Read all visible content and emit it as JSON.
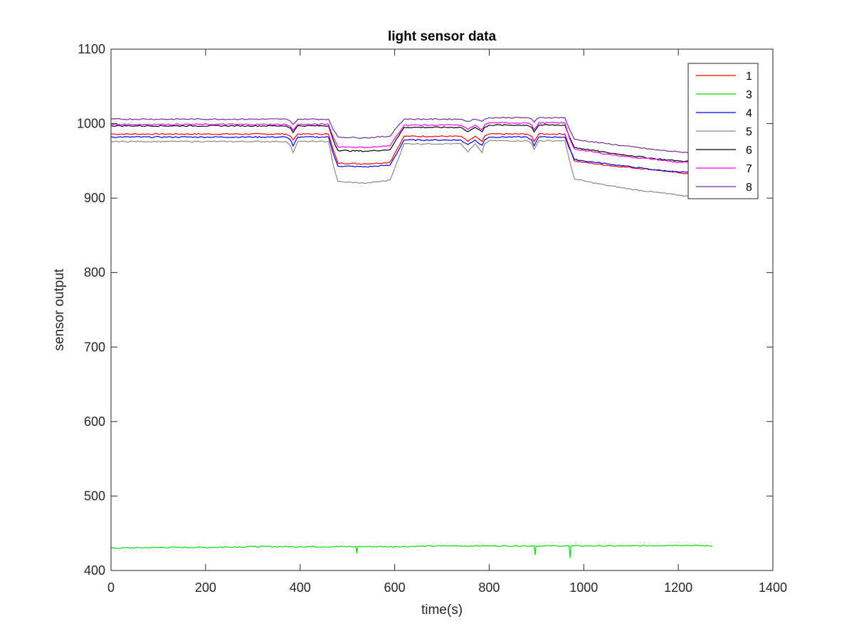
{
  "chart_data": {
    "type": "line",
    "title": "light sensor data",
    "xlabel": "time(s)",
    "ylabel": "sensor output",
    "xlim": [
      0,
      1400
    ],
    "ylim": [
      400,
      1100
    ],
    "xticks": [
      "0",
      "200",
      "400",
      "600",
      "800",
      "1000",
      "1200",
      "1400"
    ],
    "yticks": [
      "400",
      "500",
      "600",
      "700",
      "800",
      "900",
      "1000",
      "1100"
    ],
    "grid": false,
    "legend_position": "top-right",
    "series": [
      {
        "name": "1",
        "color": "#ff0000",
        "x": [
          0,
          370,
          380,
          385,
          395,
          460,
          470,
          480,
          540,
          590,
          600,
          620,
          740,
          745,
          755,
          770,
          775,
          785,
          790,
          800,
          880,
          890,
          895,
          905,
          960,
          970,
          980,
          1000,
          1050,
          1100,
          1150,
          1200,
          1230
        ],
        "y": [
          986,
          986,
          983,
          978,
          986,
          986,
          965,
          947,
          946,
          948,
          960,
          983,
          983,
          981,
          976,
          983,
          981,
          976,
          983,
          986,
          986,
          983,
          976,
          986,
          986,
          968,
          950,
          948,
          944,
          941,
          938,
          934,
          933
        ]
      },
      {
        "name": "3",
        "color": "#00dd00",
        "x": [
          0,
          100,
          200,
          300,
          400,
          500,
          518,
          520,
          522,
          524,
          600,
          700,
          800,
          893,
          895,
          897,
          899,
          967,
          969,
          971,
          973,
          1100,
          1200,
          1272
        ],
        "y": [
          430,
          431,
          431,
          432,
          432,
          432,
          432,
          423,
          432,
          432,
          432,
          433,
          433,
          433,
          433,
          421,
          433,
          433,
          433,
          417,
          433,
          433,
          434,
          433
        ]
      },
      {
        "name": "4",
        "color": "#0000ff",
        "x": [
          0,
          370,
          380,
          385,
          395,
          460,
          470,
          480,
          540,
          590,
          600,
          620,
          740,
          745,
          755,
          770,
          775,
          785,
          790,
          800,
          880,
          890,
          895,
          905,
          960,
          970,
          980,
          1000,
          1050,
          1100,
          1150,
          1200,
          1230
        ],
        "y": [
          982,
          982,
          978,
          970,
          982,
          982,
          960,
          943,
          942,
          944,
          955,
          978,
          978,
          975,
          972,
          978,
          975,
          971,
          978,
          982,
          982,
          978,
          970,
          982,
          982,
          966,
          952,
          950,
          946,
          942,
          938,
          935,
          934
        ]
      },
      {
        "name": "5",
        "color": "#888888",
        "x": [
          0,
          370,
          380,
          385,
          395,
          460,
          470,
          480,
          540,
          590,
          600,
          620,
          740,
          745,
          755,
          770,
          775,
          785,
          790,
          800,
          880,
          890,
          895,
          905,
          960,
          970,
          980,
          1000,
          1050,
          1100,
          1150,
          1200,
          1230
        ],
        "y": [
          976,
          976,
          970,
          961,
          976,
          976,
          945,
          922,
          920,
          924,
          940,
          973,
          973,
          969,
          962,
          973,
          969,
          961,
          973,
          977,
          977,
          973,
          965,
          977,
          977,
          950,
          926,
          923,
          917,
          912,
          908,
          904,
          902
        ]
      },
      {
        "name": "6",
        "color": "#000000",
        "x": [
          0,
          370,
          380,
          385,
          395,
          460,
          470,
          480,
          540,
          590,
          600,
          620,
          740,
          745,
          755,
          770,
          775,
          785,
          790,
          800,
          880,
          890,
          895,
          905,
          960,
          970,
          980,
          1000,
          1050,
          1100,
          1150,
          1200,
          1230
        ],
        "y": [
          997,
          997,
          994,
          988,
          997,
          997,
          978,
          964,
          963,
          965,
          975,
          995,
          995,
          993,
          989,
          995,
          993,
          989,
          995,
          998,
          998,
          995,
          989,
          998,
          998,
          982,
          968,
          966,
          961,
          957,
          953,
          950,
          949
        ]
      },
      {
        "name": "7",
        "color": "#ff00ff",
        "x": [
          0,
          370,
          380,
          385,
          395,
          460,
          470,
          480,
          540,
          590,
          600,
          620,
          740,
          745,
          755,
          770,
          775,
          785,
          790,
          800,
          880,
          890,
          895,
          905,
          960,
          970,
          980,
          1000,
          1050,
          1100,
          1150,
          1200,
          1230
        ],
        "y": [
          999,
          999,
          996,
          991,
          999,
          999,
          982,
          969,
          968,
          970,
          980,
          998,
          998,
          996,
          992,
          998,
          996,
          992,
          998,
          1001,
          1001,
          998,
          992,
          1001,
          1001,
          980,
          966,
          964,
          959,
          955,
          952,
          948,
          948
        ]
      },
      {
        "name": "8",
        "color": "#7030a0",
        "x": [
          0,
          370,
          380,
          385,
          395,
          460,
          470,
          480,
          540,
          590,
          600,
          620,
          740,
          745,
          755,
          770,
          775,
          785,
          790,
          800,
          880,
          890,
          895,
          905,
          960,
          970,
          980,
          1000,
          1050,
          1100,
          1150,
          1200,
          1230
        ],
        "y": [
          1006,
          1006,
          1003,
          999,
          1006,
          1006,
          992,
          982,
          981,
          983,
          992,
          1006,
          1006,
          1005,
          1003,
          1006,
          1005,
          1003,
          1006,
          1008,
          1008,
          1006,
          1002,
          1008,
          1008,
          992,
          979,
          977,
          973,
          969,
          965,
          962,
          961
        ]
      }
    ]
  }
}
